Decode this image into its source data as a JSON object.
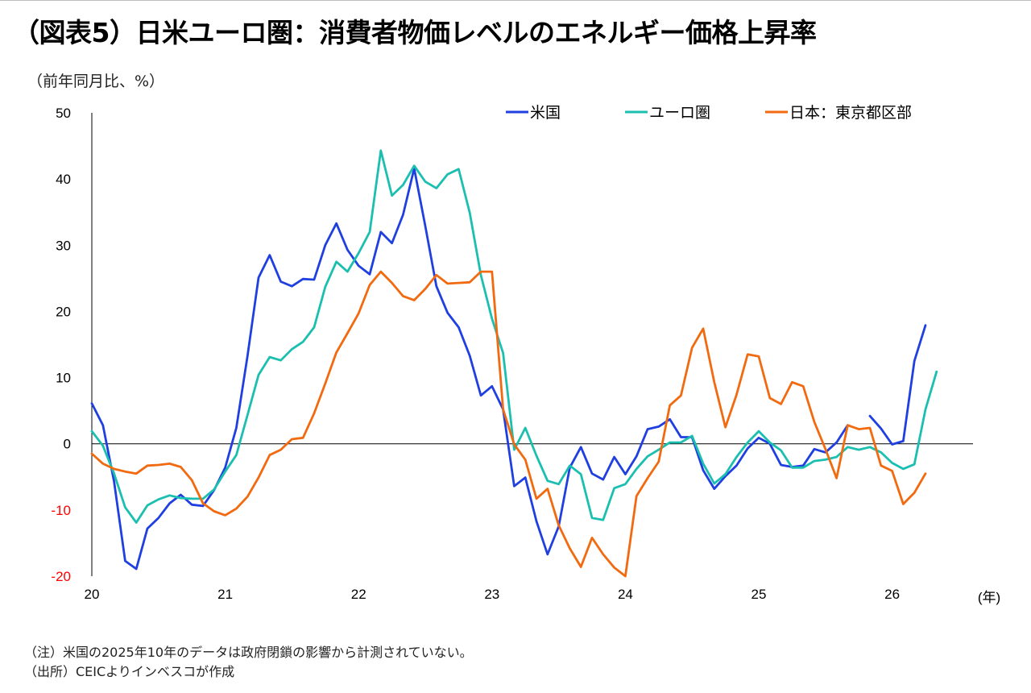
{
  "title": "（図表5）日米ユーロ圏：消費者物価レベルのエネルギー価格上昇率",
  "notes": {
    "note1": "（注）米国の2025年10年のデータは政府閉鎖の影響から計測されていない。",
    "note2": "（出所）CEICよりインベスコが作成"
  },
  "chart_data": {
    "type": "line",
    "ylabel": "（前年同月比、%）",
    "xlabel": "(年)",
    "ylim": [
      -20,
      50
    ],
    "yticks": [
      -20,
      -10,
      0,
      10,
      20,
      30,
      40,
      50
    ],
    "negative_tick_color": "#ff0000",
    "x_ticks": [
      {
        "label": "20",
        "month": 0
      },
      {
        "label": "21",
        "month": 12
      },
      {
        "label": "22",
        "month": 24
      },
      {
        "label": "23",
        "month": 36
      },
      {
        "label": "24",
        "month": 48
      },
      {
        "label": "25",
        "month": 60
      },
      {
        "label": "26",
        "month": 72
      }
    ],
    "x_range_months": [
      0,
      76
    ],
    "x_start": "2020-01",
    "x_step": "1 month",
    "legend_position": "top-right",
    "grid": false,
    "series": [
      {
        "name": "米国",
        "color": "#1f3fe0",
        "values": [
          6.1,
          2.8,
          -5.7,
          -17.7,
          -18.9,
          -12.8,
          -11.2,
          -9.0,
          -7.7,
          -9.2,
          -9.4,
          -7.0,
          -3.6,
          2.4,
          13.2,
          25.1,
          28.5,
          24.5,
          23.8,
          24.9,
          24.8,
          30.0,
          33.3,
          29.3,
          26.9,
          25.6,
          32.0,
          30.3,
          34.6,
          41.6,
          32.9,
          23.8,
          19.8,
          17.6,
          13.3,
          7.3,
          8.7,
          5.2,
          -6.4,
          -5.1,
          -11.7,
          -16.7,
          -12.5,
          -3.6,
          -0.5,
          -4.5,
          -5.4,
          -2.0,
          -4.6,
          -1.9,
          2.2,
          2.6,
          3.7,
          1.0,
          1.0,
          -4.0,
          -6.8,
          -4.9,
          -3.3,
          -0.7,
          0.9,
          0.0,
          -3.2,
          -3.5,
          -3.3,
          -0.8,
          -1.3,
          0.2,
          2.8,
          null,
          4.2,
          2.3,
          -0.1,
          0.4,
          12.5,
          17.9
        ]
      },
      {
        "name": "ユーロ圏",
        "color": "#1bbfb0",
        "values": [
          1.9,
          -0.3,
          -4.5,
          -9.6,
          -11.9,
          -9.3,
          -8.4,
          -7.8,
          -8.2,
          -8.3,
          -8.3,
          -6.9,
          -4.2,
          -1.7,
          4.3,
          10.4,
          13.1,
          12.6,
          14.3,
          15.4,
          17.6,
          23.7,
          27.5,
          26.0,
          28.8,
          32.0,
          44.3,
          37.5,
          39.1,
          42.0,
          39.6,
          38.6,
          40.7,
          41.5,
          34.9,
          25.5,
          18.9,
          13.7,
          -0.9,
          2.4,
          -1.8,
          -5.6,
          -6.1,
          -3.3,
          -4.6,
          -11.2,
          -11.5,
          -6.7,
          -6.1,
          -3.8,
          -1.9,
          -0.9,
          0.2,
          0.2,
          1.2,
          -3.0,
          -6.0,
          -4.6,
          -2.0,
          0.2,
          1.9,
          0.2,
          -1.0,
          -3.6,
          -3.6,
          -2.6,
          -2.4,
          -2.0,
          -0.5,
          -0.9,
          -0.5,
          -1.3,
          -2.9,
          -3.8,
          -3.1,
          5.2,
          10.9
        ]
      },
      {
        "name": "日本：東京都区部",
        "color": "#f26a10",
        "values": [
          -1.5,
          -3.0,
          -3.8,
          -4.2,
          -4.5,
          -3.3,
          -3.2,
          -3.0,
          -3.5,
          -5.5,
          -9.0,
          -10.2,
          -10.8,
          -9.8,
          -8.0,
          -5.1,
          -1.7,
          -0.9,
          0.7,
          0.9,
          4.6,
          9.1,
          13.8,
          16.7,
          19.7,
          24.0,
          26.0,
          24.3,
          22.3,
          21.7,
          23.4,
          25.5,
          24.2,
          24.3,
          24.4,
          26.0,
          26.0,
          5.2,
          -0.1,
          -2.4,
          -8.3,
          -6.8,
          -12.3,
          -15.8,
          -18.6,
          -14.2,
          -16.7,
          -18.7,
          -20.0,
          -7.9,
          -5.2,
          -2.7,
          5.8,
          7.3,
          14.5,
          17.4,
          9.3,
          2.5,
          7.4,
          13.5,
          13.2,
          6.9,
          6.0,
          9.3,
          8.7,
          3.3,
          -0.8,
          -5.2,
          2.8,
          2.2,
          2.4,
          -3.3,
          -4.1,
          -9.1,
          -7.4,
          -4.5
        ]
      }
    ]
  }
}
